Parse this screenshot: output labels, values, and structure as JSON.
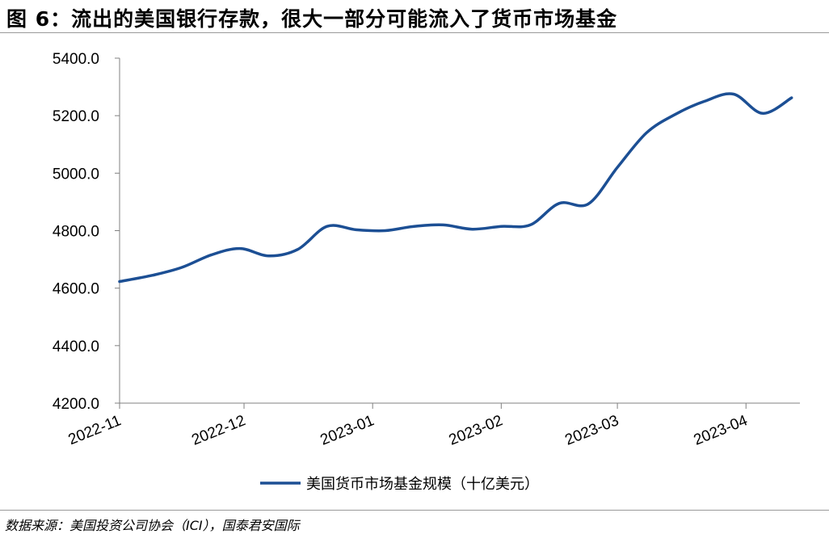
{
  "figure": {
    "title": "图 6：流出的美国银行存款，很大一部分可能流入了货币市场基金",
    "source": "数据来源：美国投资公司协会（ICI），国泰君安国际"
  },
  "colors": {
    "series": "#1c4f94",
    "axis": "#808080"
  },
  "chart_data": {
    "type": "line",
    "title": "",
    "xlabel": "",
    "ylabel": "",
    "ylim": [
      4200.0,
      5400.0
    ],
    "yticks": [
      "5400.0",
      "5200.0",
      "5000.0",
      "4800.0",
      "4600.0",
      "4400.0",
      "4200.0"
    ],
    "xticks": [
      "2022-11",
      "2022-12",
      "2023-01",
      "2023-02",
      "2023-03",
      "2023-04"
    ],
    "grid": false,
    "legend": "bottom-center",
    "series": [
      {
        "name": "美国货币市场基金规模（十亿美元）",
        "x": [
          "2022-11-01",
          "2022-11-09",
          "2022-11-16",
          "2022-11-23",
          "2022-11-30",
          "2022-12-07",
          "2022-12-14",
          "2022-12-21",
          "2022-12-28",
          "2023-01-04",
          "2023-01-11",
          "2023-01-18",
          "2023-01-25",
          "2023-02-01",
          "2023-02-08",
          "2023-02-15",
          "2023-02-22",
          "2023-03-01",
          "2023-03-08",
          "2023-03-15",
          "2023-03-22",
          "2023-03-29",
          "2023-04-05",
          "2023-04-12"
        ],
        "values": [
          4623,
          4645,
          4672,
          4715,
          4738,
          4712,
          4735,
          4815,
          4803,
          4800,
          4815,
          4820,
          4805,
          4815,
          4820,
          4895,
          4893,
          5020,
          5140,
          5205,
          5250,
          5275,
          5208,
          5262
        ]
      }
    ]
  }
}
